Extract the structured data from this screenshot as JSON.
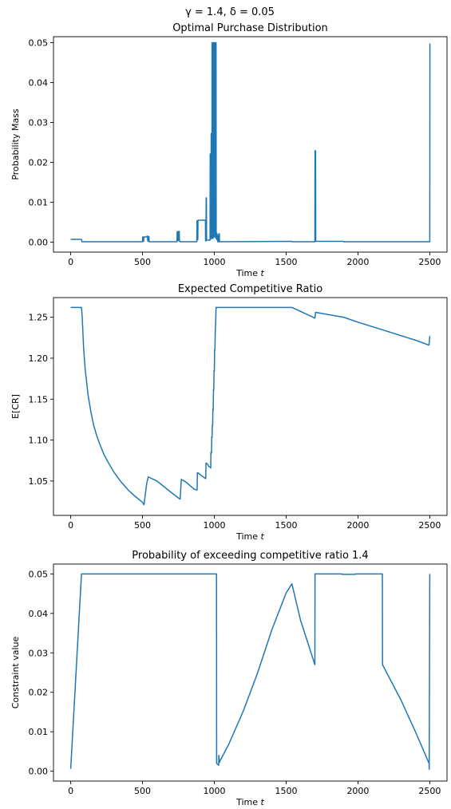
{
  "figure": {
    "suptitle": "γ = 1.4, δ = 0.05"
  },
  "chart_data": [
    {
      "type": "line",
      "title": "Optimal Purchase Distribution",
      "xlabel": "Time t",
      "ylabel": "Probability Mass",
      "xlim": [
        -120,
        2620
      ],
      "ylim": [
        -0.0025,
        0.0515
      ],
      "xticks": [
        0,
        500,
        1000,
        1500,
        2000,
        2500
      ],
      "yticks": [
        0.0,
        0.01,
        0.02,
        0.03,
        0.04,
        0.05
      ],
      "ytick_decimals": 2,
      "grid": false,
      "legend": "none",
      "color": "#1f77b4",
      "series": [
        {
          "x": [
            0,
            75,
            76,
            78,
            500,
            501,
            505,
            506,
            508,
            509,
            530,
            531,
            535,
            536,
            540,
            541,
            545,
            546,
            740,
            741,
            745,
            746,
            750,
            751,
            756,
            757,
            760,
            761,
            878,
            879,
            882,
            883,
            885,
            886,
            938,
            939,
            942,
            943,
            945,
            946,
            970,
            971,
            974,
            975,
            977,
            978,
            980,
            981,
            983,
            984,
            985,
            986,
            988,
            989,
            990,
            991,
            993,
            994,
            995,
            996,
            998,
            999,
            1000,
            1001,
            1003,
            1004,
            1006,
            1007,
            1009,
            1010,
            1012,
            1013,
            1014,
            1015,
            1017,
            1018,
            1019,
            1020,
            1022,
            1023,
            1030,
            1031,
            1035,
            1036,
            1540,
            1541,
            1700,
            1701,
            1705,
            1706,
            1900,
            1901,
            1980,
            1981,
            2500,
            2501,
            2502
          ],
          "y": [
            0.0007,
            0.0007,
            0.0005,
            0.0001,
            0.0001,
            0.0013,
            0.0013,
            0.0002,
            0.0002,
            0.0013,
            0.0013,
            0.0015,
            0.0015,
            0.0003,
            0.0003,
            0.0014,
            0.0014,
            0.0001,
            0.0001,
            0.0026,
            0.0026,
            0.0004,
            0.0004,
            0.0027,
            0.0027,
            0.0003,
            0.0003,
            0.0001,
            0.0001,
            0.0053,
            0.0053,
            0.0006,
            0.0006,
            0.0055,
            0.0055,
            0.0003,
            0.0003,
            0.0111,
            0.0111,
            0.0005,
            0.0005,
            0.0221,
            0.0221,
            0.0008,
            0.0008,
            0.0272,
            0.0272,
            0.0012,
            0.0012,
            0.05,
            0.05,
            0.0009,
            0.0009,
            0.05,
            0.05,
            0.0011,
            0.0011,
            0.05,
            0.05,
            0.0013,
            0.0013,
            0.05,
            0.05,
            0.0015,
            0.0015,
            0.05,
            0.05,
            0.0012,
            0.0012,
            0.05,
            0.05,
            0.0009,
            0.0009,
            0.0023,
            0.0023,
            0.0006,
            0.0006,
            0.0018,
            0.0018,
            0.0001,
            0.0001,
            0.0021,
            0.0021,
            0.0001,
            0.0002,
            0.0001,
            0.0001,
            0.0229,
            0.0229,
            0.0002,
            0.0002,
            0.0001,
            0.0001,
            0.0001,
            0.0001,
            0.0497,
            0.0497
          ]
        }
      ]
    },
    {
      "type": "line",
      "title": "Expected Competitive Ratio",
      "xlabel": "Time t",
      "ylabel": "E[CR]",
      "xlim": [
        -120,
        2620
      ],
      "ylim": [
        1.008,
        1.274
      ],
      "xticks": [
        0,
        500,
        1000,
        1500,
        2000,
        2500
      ],
      "yticks": [
        1.05,
        1.1,
        1.15,
        1.2,
        1.25
      ],
      "ytick_decimals": 2,
      "grid": false,
      "legend": "none",
      "color": "#1f77b4",
      "series": [
        {
          "x": [
            0,
            75,
            80,
            90,
            100,
            120,
            140,
            160,
            180,
            200,
            230,
            260,
            300,
            350,
            400,
            450,
            500,
            510,
            530,
            540,
            600,
            700,
            760,
            762,
            770,
            800,
            860,
            880,
            882,
            885,
            930,
            940,
            942,
            955,
            960,
            970,
            975,
            976,
            980,
            982,
            984,
            986,
            988,
            990,
            992,
            994,
            996,
            998,
            1000,
            1002,
            1004,
            1006,
            1008,
            1009,
            1012,
            1540,
            1700,
            1705,
            1900,
            2000,
            2200,
            2400,
            2495,
            2500
          ],
          "y": [
            1.262,
            1.262,
            1.25,
            1.212,
            1.188,
            1.156,
            1.135,
            1.118,
            1.106,
            1.096,
            1.083,
            1.073,
            1.061,
            1.049,
            1.039,
            1.031,
            1.024,
            1.021,
            1.048,
            1.055,
            1.05,
            1.036,
            1.028,
            1.028,
            1.052,
            1.049,
            1.04,
            1.039,
            1.06,
            1.06,
            1.054,
            1.053,
            1.072,
            1.07,
            1.068,
            1.067,
            1.066,
            1.085,
            1.084,
            1.104,
            1.103,
            1.118,
            1.117,
            1.138,
            1.137,
            1.162,
            1.161,
            1.185,
            1.184,
            1.21,
            1.21,
            1.23,
            1.24,
            1.242,
            1.262,
            1.262,
            1.249,
            1.256,
            1.25,
            1.244,
            1.233,
            1.222,
            1.216,
            1.227
          ]
        }
      ]
    },
    {
      "type": "line",
      "title": "Probability of exceeding competitive ratio 1.4",
      "xlabel": "Time t",
      "ylabel": "Constraint value",
      "xlim": [
        -120,
        2620
      ],
      "ylim": [
        -0.0025,
        0.0525
      ],
      "xticks": [
        0,
        500,
        1000,
        1500,
        2000,
        2500
      ],
      "yticks": [
        0.0,
        0.01,
        0.02,
        0.03,
        0.04,
        0.05
      ],
      "ytick_decimals": 2,
      "grid": false,
      "legend": "none",
      "color": "#1f77b4",
      "series": [
        {
          "x": [
            0,
            75,
            1015,
            1016,
            1030,
            1031,
            1036,
            1038,
            1100,
            1200,
            1300,
            1400,
            1500,
            1540,
            1600,
            1700,
            1701,
            1705,
            1890,
            1891,
            1980,
            1981,
            2170,
            2171,
            2300,
            2400,
            2495,
            2496,
            2500
          ],
          "y": [
            0.0006,
            0.05,
            0.05,
            0.002,
            0.0015,
            0.004,
            0.0022,
            0.0025,
            0.0068,
            0.0151,
            0.0248,
            0.0358,
            0.0452,
            0.0475,
            0.0383,
            0.027,
            0.05,
            0.05,
            0.05,
            0.0499,
            0.0499,
            0.05,
            0.05,
            0.027,
            0.018,
            0.01,
            0.002,
            0.0005,
            0.05
          ]
        }
      ]
    }
  ]
}
